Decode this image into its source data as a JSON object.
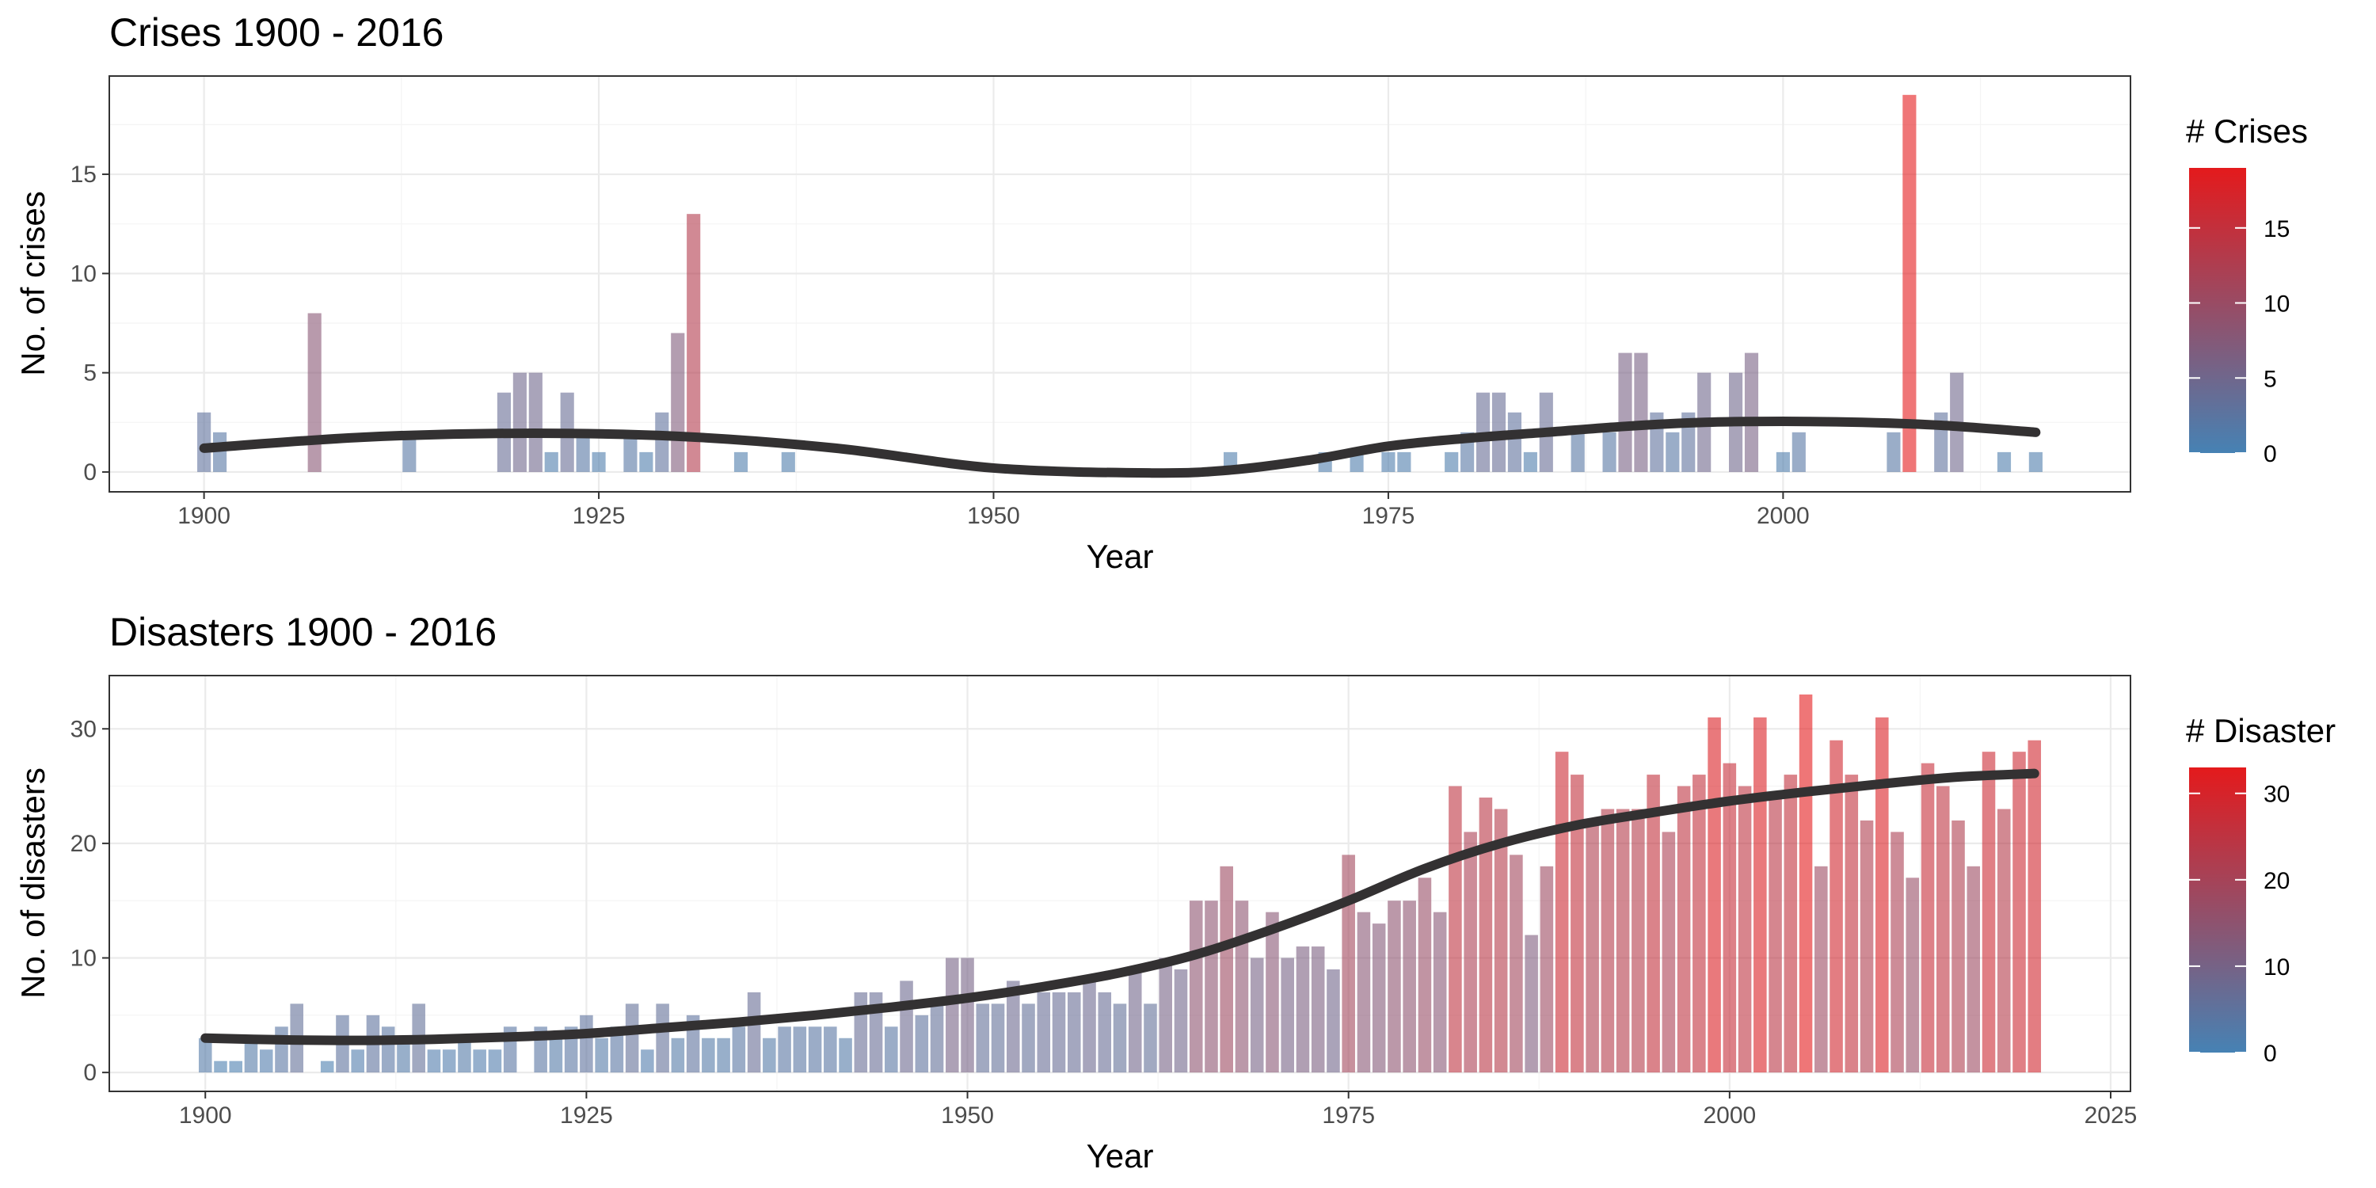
{
  "chart_data": [
    {
      "type": "bar",
      "title": "Crises 1900 - 2016",
      "xlabel": "Year",
      "ylabel": "No. of crises",
      "xlim": [
        1894,
        2022
      ],
      "ylim": [
        -1,
        19.95
      ],
      "xticks": [
        1900,
        1925,
        1950,
        1975,
        2000
      ],
      "yticks": [
        0,
        5,
        10,
        15
      ],
      "grid": true,
      "legend": {
        "title": "# Crises",
        "position": "right",
        "breaks": [
          0,
          5,
          10,
          15
        ],
        "min": 0,
        "max": 19
      },
      "colors": {
        "low": "#4682b4",
        "high": "#e41a1c"
      },
      "x": [
        1900,
        1901,
        1907,
        1913,
        1919,
        1920,
        1921,
        1922,
        1923,
        1924,
        1925,
        1927,
        1928,
        1929,
        1930,
        1931,
        1934,
        1937,
        1965,
        1971,
        1973,
        1975,
        1976,
        1979,
        1980,
        1981,
        1982,
        1983,
        1984,
        1985,
        1987,
        1989,
        1990,
        1991,
        1992,
        1993,
        1994,
        1995,
        1997,
        1998,
        2000,
        2001,
        2007,
        2008,
        2010,
        2011,
        2014,
        2016
      ],
      "values": [
        3,
        2,
        8,
        2,
        4,
        5,
        5,
        1,
        4,
        2,
        1,
        2,
        1,
        3,
        7,
        13,
        1,
        1,
        1,
        1,
        1,
        1,
        1,
        1,
        2,
        4,
        4,
        3,
        1,
        4,
        2,
        2,
        6,
        6,
        3,
        2,
        3,
        5,
        5,
        6,
        1,
        2,
        2,
        19,
        3,
        5,
        1,
        1
      ],
      "smooth": {
        "x": [
          1900,
          1910,
          1920,
          1930,
          1940,
          1950,
          1960,
          1965,
          1970,
          1975,
          1980,
          1985,
          1990,
          1995,
          2000,
          2005,
          2010,
          2016
        ],
        "y": [
          1.2,
          1.75,
          1.95,
          1.8,
          1.2,
          0.2,
          -0.05,
          0.1,
          0.6,
          1.3,
          1.7,
          2.0,
          2.3,
          2.5,
          2.55,
          2.5,
          2.35,
          2.0
        ]
      }
    },
    {
      "type": "bar",
      "title": "Disasters 1900 - 2016",
      "xlabel": "Year",
      "ylabel": "No. of disasters",
      "xlim": [
        1893.7,
        2026.3
      ],
      "ylim": [
        -1.65,
        34.65
      ],
      "xticks": [
        1900,
        1925,
        1950,
        1975,
        2000,
        2025
      ],
      "yticks": [
        0,
        10,
        20,
        30
      ],
      "grid": true,
      "legend": {
        "title": "# Disaster",
        "position": "right",
        "breaks": [
          0,
          10,
          20,
          30
        ],
        "min": 0,
        "max": 33
      },
      "colors": {
        "low": "#4682b4",
        "high": "#e41a1c"
      },
      "x": [
        1900,
        1901,
        1902,
        1903,
        1904,
        1905,
        1906,
        1907,
        1908,
        1909,
        1910,
        1911,
        1912,
        1913,
        1914,
        1915,
        1916,
        1917,
        1918,
        1919,
        1920,
        1921,
        1922,
        1923,
        1924,
        1925,
        1926,
        1927,
        1928,
        1929,
        1930,
        1931,
        1932,
        1933,
        1934,
        1935,
        1936,
        1937,
        1938,
        1939,
        1940,
        1941,
        1942,
        1943,
        1944,
        1945,
        1946,
        1947,
        1948,
        1949,
        1950,
        1951,
        1952,
        1953,
        1954,
        1955,
        1956,
        1957,
        1958,
        1959,
        1960,
        1961,
        1962,
        1963,
        1964,
        1965,
        1966,
        1967,
        1968,
        1969,
        1970,
        1971,
        1972,
        1973,
        1974,
        1975,
        1976,
        1977,
        1978,
        1979,
        1980,
        1981,
        1982,
        1983,
        1984,
        1985,
        1986,
        1987,
        1988,
        1989,
        1990,
        1991,
        1992,
        1993,
        1994,
        1995,
        1996,
        1997,
        1998,
        1999,
        2000,
        2001,
        2002,
        2003,
        2004,
        2005,
        2006,
        2007,
        2008,
        2009,
        2010,
        2011,
        2012,
        2013,
        2014,
        2015,
        2016,
        2017,
        2018,
        2019,
        2020
      ],
      "values": [
        3,
        1,
        1,
        3,
        2,
        4,
        6,
        0,
        1,
        5,
        2,
        5,
        4,
        3,
        6,
        2,
        2,
        3,
        2,
        2,
        4,
        0,
        4,
        3,
        4,
        5,
        3,
        4,
        6,
        2,
        6,
        3,
        5,
        3,
        3,
        4,
        7,
        3,
        4,
        4,
        4,
        4,
        3,
        7,
        7,
        4,
        8,
        5,
        6,
        10,
        10,
        6,
        6,
        8,
        6,
        7,
        7,
        7,
        8,
        7,
        6,
        9,
        6,
        10,
        9,
        15,
        15,
        18,
        15,
        10,
        14,
        10,
        11,
        11,
        9,
        19,
        14,
        13,
        15,
        15,
        17,
        14,
        25,
        21,
        24,
        23,
        19,
        12,
        18,
        28,
        26,
        22,
        23,
        23,
        23,
        26,
        21,
        25,
        26,
        31,
        27,
        25,
        31,
        24,
        26,
        33,
        18,
        29,
        26,
        22,
        31,
        21,
        17,
        27,
        25,
        22,
        18,
        28,
        23,
        28,
        29
      ],
      "smooth": {
        "x": [
          1900,
          1905,
          1910,
          1915,
          1920,
          1925,
          1930,
          1935,
          1940,
          1945,
          1950,
          1955,
          1960,
          1965,
          1970,
          1975,
          1980,
          1985,
          1990,
          1995,
          2000,
          2005,
          2010,
          2015,
          2020
        ],
        "y": [
          3.0,
          2.85,
          2.8,
          2.9,
          3.1,
          3.4,
          3.9,
          4.4,
          5.0,
          5.7,
          6.5,
          7.5,
          8.7,
          10.3,
          12.5,
          15.0,
          17.8,
          20.0,
          21.6,
          22.7,
          23.7,
          24.5,
          25.2,
          25.8,
          26.1
        ]
      }
    }
  ]
}
